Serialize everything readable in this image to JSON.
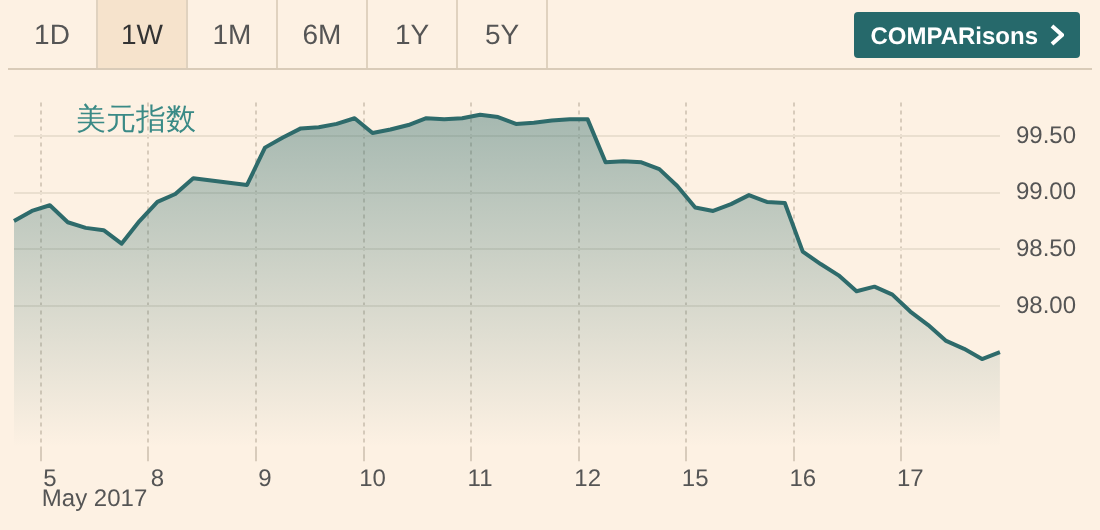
{
  "chart_data": {
    "type": "area",
    "title": "美元指数",
    "annotations": [
      "May 2017",
      "1D",
      "1W",
      "1M",
      "6M",
      "1Y",
      "5Y",
      "COMPARisons"
    ],
    "categories": [
      null,
      null,
      "5",
      null,
      null,
      null,
      null,
      null,
      "8",
      null,
      null,
      null,
      null,
      null,
      "9",
      null,
      null,
      null,
      null,
      null,
      "10",
      null,
      null,
      null,
      null,
      null,
      "11",
      null,
      null,
      null,
      null,
      null,
      "12",
      null,
      null,
      null,
      null,
      null,
      "15",
      null,
      null,
      null,
      null,
      null,
      "16",
      null,
      null,
      null,
      null,
      null,
      "17",
      null,
      null,
      null,
      null,
      null
    ],
    "series": [
      {
        "color": "#2e6b6b",
        "values": [
          98.75,
          98.84,
          98.89,
          98.74,
          98.69,
          98.67,
          98.55,
          98.75,
          98.92,
          98.99,
          99.13,
          99.11,
          99.09,
          99.07,
          99.4,
          99.49,
          99.57,
          99.58,
          99.61,
          99.66,
          99.53,
          99.56,
          99.6,
          99.66,
          99.65,
          99.66,
          99.69,
          99.67,
          99.61,
          99.62,
          99.64,
          99.65,
          99.65,
          99.27,
          99.28,
          99.27,
          99.21,
          99.06,
          98.87,
          98.84,
          98.9,
          98.98,
          98.92,
          98.91,
          98.48,
          98.37,
          98.27,
          98.13,
          98.17,
          98.1,
          97.95,
          97.83,
          97.69,
          97.62,
          97.53,
          97.59
        ]
      }
    ],
    "ylim": [
      96.75,
      99.8
    ],
    "yticks": [
      {
        "value": 98,
        "label": "98.00"
      },
      {
        "value": 98.5,
        "label": "98.50"
      },
      {
        "value": 99,
        "label": "99.00"
      },
      {
        "value": 99.5,
        "label": "99.50"
      }
    ],
    "grid": true,
    "legend": false,
    "marker": "none",
    "line_style": "solid"
  }
}
